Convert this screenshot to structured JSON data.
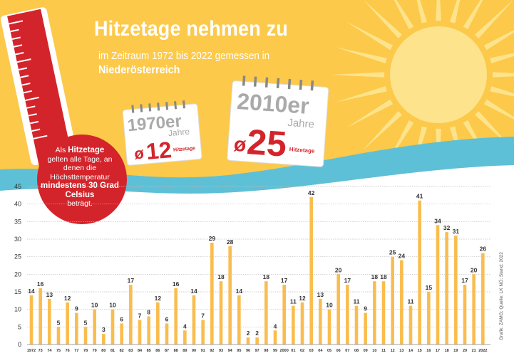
{
  "header": {
    "title": "Hitzetage nehmen zu",
    "subtitle": "im Zeitraum 1972 bis 2022 gemessen in",
    "region": "Niederösterreich"
  },
  "thermometer": {
    "lead": "Als",
    "term": "Hitzetage",
    "mid": "gelten alle Tage, an denen die Höchsttemperatur",
    "threshold": "mindestens 30 Grad Celsius",
    "tail": "beträgt."
  },
  "calendars": [
    {
      "decade": "1970er",
      "suffix": "Jahre",
      "symbol": "ø",
      "value": "12",
      "unit": "Hitzetage"
    },
    {
      "decade": "2010er",
      "suffix": "Jahre",
      "symbol": "ø",
      "value": "25",
      "unit": "Hitzetage"
    }
  ],
  "source": "Grafik: ZAMG; Quelle: LK NÖ; Stand: 2022",
  "colors": {
    "sky": "#fcc94a",
    "sun": "#fde38c",
    "wave": "#5ec0d6",
    "bar": "#f9bd4f",
    "thermometer": "#d4242b",
    "text": "#333333"
  },
  "chart_data": {
    "type": "bar",
    "categories": [
      "1972",
      "73",
      "74",
      "75",
      "76",
      "77",
      "78",
      "79",
      "80",
      "81",
      "82",
      "83",
      "84",
      "85",
      "86",
      "87",
      "88",
      "89",
      "90",
      "91",
      "92",
      "93",
      "94",
      "95",
      "96",
      "97",
      "98",
      "99",
      "2000",
      "01",
      "02",
      "03",
      "04",
      "05",
      "06",
      "07",
      "08",
      "09",
      "10",
      "11",
      "12",
      "13",
      "14",
      "15",
      "16",
      "17",
      "18",
      "19",
      "20",
      "21",
      "2022"
    ],
    "values": [
      14,
      16,
      13,
      5,
      12,
      9,
      5,
      10,
      3,
      10,
      6,
      17,
      7,
      8,
      12,
      6,
      16,
      4,
      14,
      7,
      29,
      18,
      28,
      14,
      2,
      2,
      18,
      4,
      17,
      11,
      12,
      42,
      13,
      10,
      20,
      17,
      11,
      9,
      18,
      18,
      25,
      24,
      11,
      41,
      15,
      34,
      32,
      31,
      17,
      20,
      26
    ],
    "ylim": [
      0,
      45
    ],
    "yticks": [
      0,
      5,
      10,
      15,
      20,
      25,
      30,
      35,
      40,
      45
    ],
    "grid": true,
    "data_labels": true
  }
}
